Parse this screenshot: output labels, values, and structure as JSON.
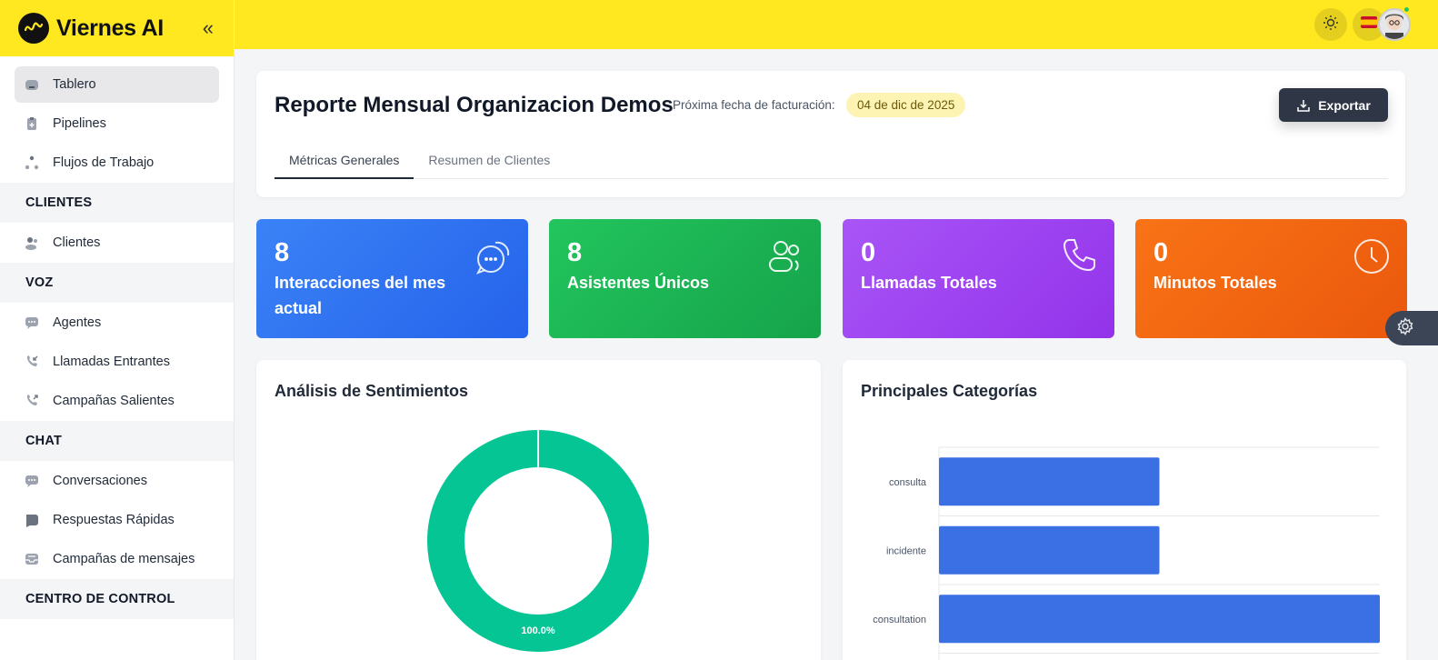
{
  "app": {
    "name": "Viernes AI"
  },
  "sidebar": {
    "main": [
      {
        "label": "Tablero",
        "icon": "dashboard-icon",
        "active": true
      },
      {
        "label": "Pipelines",
        "icon": "pipeline-icon"
      },
      {
        "label": "Flujos de Trabajo",
        "icon": "workflow-icon"
      }
    ],
    "sections": [
      {
        "title": "CLIENTES",
        "items": [
          {
            "label": "Clientes",
            "icon": "users-icon"
          }
        ]
      },
      {
        "title": "VOZ",
        "items": [
          {
            "label": "Agentes",
            "icon": "agent-icon"
          },
          {
            "label": "Llamadas Entrantes",
            "icon": "incoming-call-icon"
          },
          {
            "label": "Campañas Salientes",
            "icon": "outgoing-call-icon"
          }
        ]
      },
      {
        "title": "CHAT",
        "items": [
          {
            "label": "Conversaciones",
            "icon": "chat-icon"
          },
          {
            "label": "Respuestas Rápidas",
            "icon": "quick-reply-icon"
          },
          {
            "label": "Campañas de mensajes",
            "icon": "inbox-icon"
          }
        ]
      },
      {
        "title": "CENTRO DE CONTROL",
        "items": []
      }
    ]
  },
  "topbar": {
    "theme_icon": "sun-icon",
    "language_flag": "spain-flag-icon",
    "avatar": "user-avatar"
  },
  "header": {
    "title": "Reporte Mensual Organizacion Demos",
    "billing_label": "Próxima fecha de facturación:",
    "billing_date": "04 de dic de 2025",
    "export_label": "Exportar",
    "tabs": [
      {
        "label": "Métricas Generales",
        "active": true
      },
      {
        "label": "Resumen de Clientes",
        "active": false
      }
    ]
  },
  "stats": [
    {
      "value": "8",
      "label": "Interacciones del mes actual",
      "color": "#3b82f6",
      "icon": "chat-bubbles-icon"
    },
    {
      "value": "8",
      "label": "Asistentes Únicos",
      "color": "#22c55e",
      "icon": "users-icon"
    },
    {
      "value": "0",
      "label": "Llamadas Totales",
      "color": "#a855f7",
      "icon": "phone-icon"
    },
    {
      "value": "0",
      "label": "Minutos Totales",
      "color": "#f97316",
      "icon": "clock-icon"
    }
  ],
  "panels": {
    "sentiment_title": "Análisis de Sentimientos",
    "categories_title": "Principales Categorías"
  },
  "chart_data": [
    {
      "type": "pie",
      "title": "Análisis de Sentimientos",
      "slices": [
        {
          "value": 100.0,
          "label": "100.0%",
          "color": "#06c595"
        }
      ]
    },
    {
      "type": "bar",
      "orientation": "horizontal",
      "title": "Principales Categorías",
      "categories": [
        "consulta",
        "incidente",
        "consultation"
      ],
      "values": [
        2,
        2,
        4
      ],
      "xlim": [
        0,
        4
      ],
      "color": "#3b6fe4",
      "grid": true
    }
  ]
}
